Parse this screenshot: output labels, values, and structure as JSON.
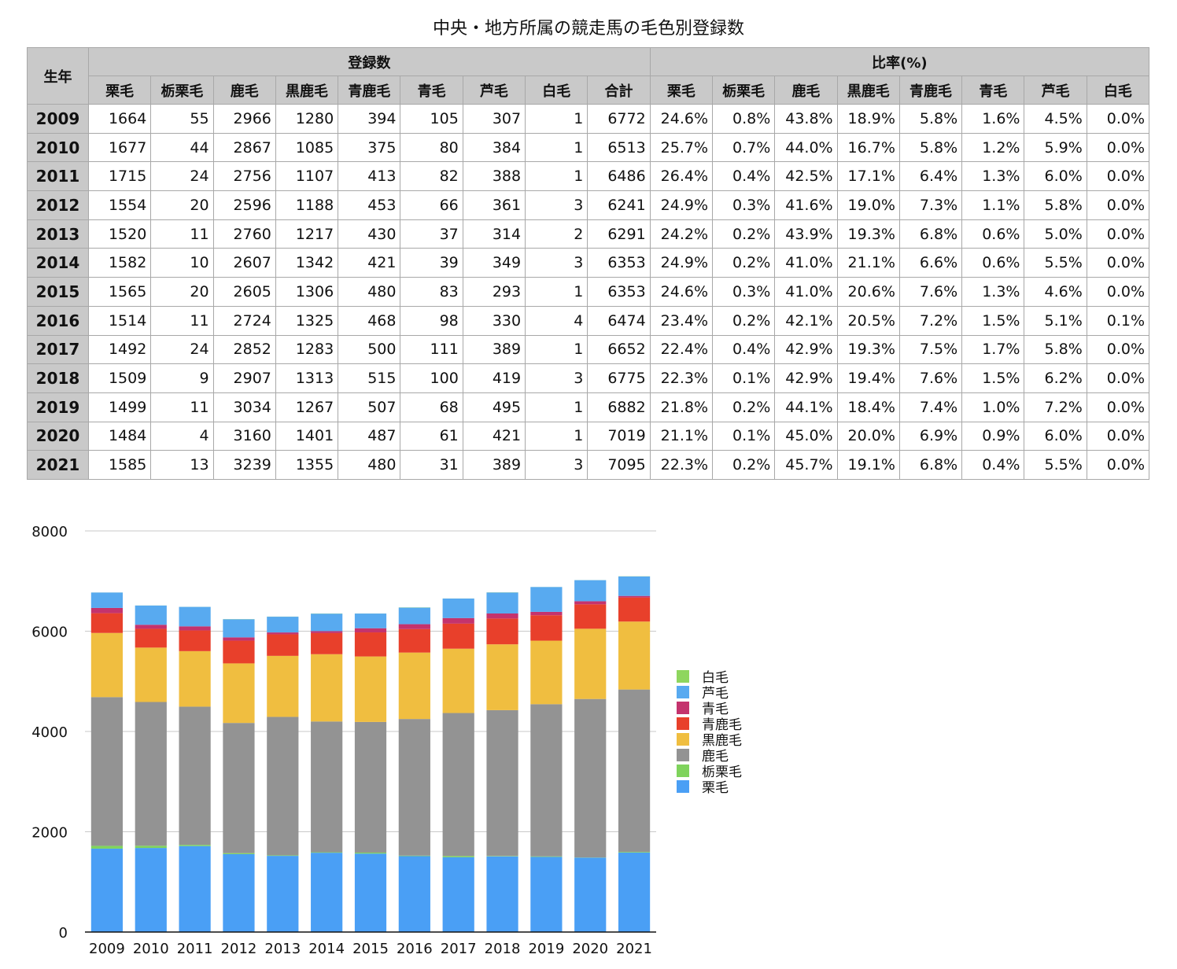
{
  "title": "中央・地方所属の競走馬の毛色別登録数",
  "table": {
    "year_header": "生年",
    "group_count": "登録数",
    "group_ratio": "比率(%)",
    "count_cols": [
      "栗毛",
      "栃栗毛",
      "鹿毛",
      "黒鹿毛",
      "青鹿毛",
      "青毛",
      "芦毛",
      "白毛",
      "合計"
    ],
    "ratio_cols": [
      "栗毛",
      "栃栗毛",
      "鹿毛",
      "黒鹿毛",
      "青鹿毛",
      "青毛",
      "芦毛",
      "白毛"
    ],
    "rows": [
      {
        "year": "2009",
        "counts": [
          "1664",
          "55",
          "2966",
          "1280",
          "394",
          "105",
          "307",
          "1",
          "6772"
        ],
        "ratios": [
          "24.6%",
          "0.8%",
          "43.8%",
          "18.9%",
          "5.8%",
          "1.6%",
          "4.5%",
          "0.0%"
        ]
      },
      {
        "year": "2010",
        "counts": [
          "1677",
          "44",
          "2867",
          "1085",
          "375",
          "80",
          "384",
          "1",
          "6513"
        ],
        "ratios": [
          "25.7%",
          "0.7%",
          "44.0%",
          "16.7%",
          "5.8%",
          "1.2%",
          "5.9%",
          "0.0%"
        ]
      },
      {
        "year": "2011",
        "counts": [
          "1715",
          "24",
          "2756",
          "1107",
          "413",
          "82",
          "388",
          "1",
          "6486"
        ],
        "ratios": [
          "26.4%",
          "0.4%",
          "42.5%",
          "17.1%",
          "6.4%",
          "1.3%",
          "6.0%",
          "0.0%"
        ]
      },
      {
        "year": "2012",
        "counts": [
          "1554",
          "20",
          "2596",
          "1188",
          "453",
          "66",
          "361",
          "3",
          "6241"
        ],
        "ratios": [
          "24.9%",
          "0.3%",
          "41.6%",
          "19.0%",
          "7.3%",
          "1.1%",
          "5.8%",
          "0.0%"
        ]
      },
      {
        "year": "2013",
        "counts": [
          "1520",
          "11",
          "2760",
          "1217",
          "430",
          "37",
          "314",
          "2",
          "6291"
        ],
        "ratios": [
          "24.2%",
          "0.2%",
          "43.9%",
          "19.3%",
          "6.8%",
          "0.6%",
          "5.0%",
          "0.0%"
        ]
      },
      {
        "year": "2014",
        "counts": [
          "1582",
          "10",
          "2607",
          "1342",
          "421",
          "39",
          "349",
          "3",
          "6353"
        ],
        "ratios": [
          "24.9%",
          "0.2%",
          "41.0%",
          "21.1%",
          "6.6%",
          "0.6%",
          "5.5%",
          "0.0%"
        ]
      },
      {
        "year": "2015",
        "counts": [
          "1565",
          "20",
          "2605",
          "1306",
          "480",
          "83",
          "293",
          "1",
          "6353"
        ],
        "ratios": [
          "24.6%",
          "0.3%",
          "41.0%",
          "20.6%",
          "7.6%",
          "1.3%",
          "4.6%",
          "0.0%"
        ]
      },
      {
        "year": "2016",
        "counts": [
          "1514",
          "11",
          "2724",
          "1325",
          "468",
          "98",
          "330",
          "4",
          "6474"
        ],
        "ratios": [
          "23.4%",
          "0.2%",
          "42.1%",
          "20.5%",
          "7.2%",
          "1.5%",
          "5.1%",
          "0.1%"
        ]
      },
      {
        "year": "2017",
        "counts": [
          "1492",
          "24",
          "2852",
          "1283",
          "500",
          "111",
          "389",
          "1",
          "6652"
        ],
        "ratios": [
          "22.4%",
          "0.4%",
          "42.9%",
          "19.3%",
          "7.5%",
          "1.7%",
          "5.8%",
          "0.0%"
        ]
      },
      {
        "year": "2018",
        "counts": [
          "1509",
          "9",
          "2907",
          "1313",
          "515",
          "100",
          "419",
          "3",
          "6775"
        ],
        "ratios": [
          "22.3%",
          "0.1%",
          "42.9%",
          "19.4%",
          "7.6%",
          "1.5%",
          "6.2%",
          "0.0%"
        ]
      },
      {
        "year": "2019",
        "counts": [
          "1499",
          "11",
          "3034",
          "1267",
          "507",
          "68",
          "495",
          "1",
          "6882"
        ],
        "ratios": [
          "21.8%",
          "0.2%",
          "44.1%",
          "18.4%",
          "7.4%",
          "1.0%",
          "7.2%",
          "0.0%"
        ]
      },
      {
        "year": "2020",
        "counts": [
          "1484",
          "4",
          "3160",
          "1401",
          "487",
          "61",
          "421",
          "1",
          "7019"
        ],
        "ratios": [
          "21.1%",
          "0.1%",
          "45.0%",
          "20.0%",
          "6.9%",
          "0.9%",
          "6.0%",
          "0.0%"
        ]
      },
      {
        "year": "2021",
        "counts": [
          "1585",
          "13",
          "3239",
          "1355",
          "480",
          "31",
          "389",
          "3",
          "7095"
        ],
        "ratios": [
          "22.3%",
          "0.2%",
          "45.7%",
          "19.1%",
          "6.8%",
          "0.4%",
          "5.5%",
          "0.0%"
        ]
      }
    ]
  },
  "chart_data": {
    "type": "bar",
    "stacked": true,
    "categories": [
      "2009",
      "2010",
      "2011",
      "2012",
      "2013",
      "2014",
      "2015",
      "2016",
      "2017",
      "2018",
      "2019",
      "2020",
      "2021"
    ],
    "ylim": [
      0,
      8000
    ],
    "yticks": [
      "0",
      "2000",
      "4000",
      "6000",
      "8000"
    ],
    "grid": true,
    "legend": "right",
    "series": [
      {
        "name": "栗毛",
        "color": "#4a9ff5",
        "values": [
          1664,
          1677,
          1715,
          1554,
          1520,
          1582,
          1565,
          1514,
          1492,
          1509,
          1499,
          1484,
          1585
        ]
      },
      {
        "name": "栃栗毛",
        "color": "#7fd35c",
        "values": [
          55,
          44,
          24,
          20,
          11,
          10,
          20,
          11,
          24,
          9,
          11,
          4,
          13
        ]
      },
      {
        "name": "鹿毛",
        "color": "#939393",
        "values": [
          2966,
          2867,
          2756,
          2596,
          2760,
          2607,
          2605,
          2724,
          2852,
          2907,
          3034,
          3160,
          3239
        ]
      },
      {
        "name": "黒鹿毛",
        "color": "#f0be40",
        "values": [
          1280,
          1085,
          1107,
          1188,
          1217,
          1342,
          1306,
          1325,
          1283,
          1313,
          1267,
          1401,
          1355
        ]
      },
      {
        "name": "青鹿毛",
        "color": "#e8402b",
        "values": [
          394,
          375,
          413,
          453,
          430,
          421,
          480,
          468,
          500,
          515,
          507,
          487,
          480
        ]
      },
      {
        "name": "青毛",
        "color": "#c4336d",
        "values": [
          105,
          80,
          82,
          66,
          37,
          39,
          83,
          98,
          111,
          100,
          68,
          61,
          31
        ]
      },
      {
        "name": "芦毛",
        "color": "#58aaf0",
        "values": [
          307,
          384,
          388,
          361,
          314,
          349,
          293,
          330,
          389,
          419,
          495,
          421,
          389
        ]
      },
      {
        "name": "白毛",
        "color": "#8ed65e",
        "values": [
          1,
          1,
          1,
          3,
          2,
          3,
          1,
          4,
          1,
          3,
          1,
          1,
          3
        ]
      }
    ]
  }
}
